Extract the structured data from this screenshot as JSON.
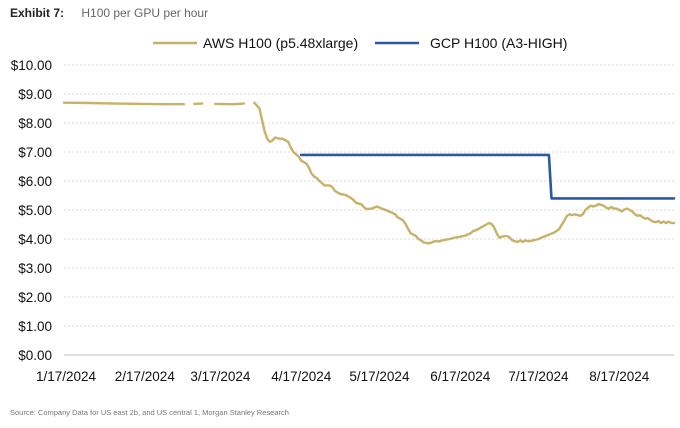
{
  "header": {
    "exhibit": "Exhibit 7:",
    "title": "H100 per GPU per hour"
  },
  "source": "Source: Company Data for US east 2b, and US central 1, Morgan Stanley Research",
  "chart_data": {
    "type": "line",
    "title": "H100 per GPU per hour",
    "xlabel": "",
    "ylabel": "",
    "ylim": [
      0,
      10
    ],
    "y_ticks": [
      0,
      1,
      2,
      3,
      4,
      5,
      6,
      7,
      8,
      9,
      10
    ],
    "y_tick_labels": [
      "$0.00",
      "$1.00",
      "$2.00",
      "$3.00",
      "$4.00",
      "$5.00",
      "$6.00",
      "$7.00",
      "$8.00",
      "$9.00",
      "$10.00"
    ],
    "x_tick_labels": [
      "1/17/2024",
      "2/17/2024",
      "3/17/2024",
      "4/17/2024",
      "5/17/2024",
      "6/17/2024",
      "7/17/2024",
      "8/17/2024"
    ],
    "grid": true,
    "legend_position": "top",
    "series": [
      {
        "name": "AWS H100 (p5.48xlarge)",
        "color": "#c8b168",
        "segments": [
          [
            [
              0,
              8.7
            ],
            [
              10,
              8.69
            ],
            [
              20,
              8.67
            ],
            [
              30,
              8.66
            ],
            [
              40,
              8.65
            ],
            [
              46,
              8.65
            ]
          ],
          [
            [
              50,
              8.66
            ],
            [
              53,
              8.67
            ]
          ],
          [
            [
              58,
              8.66
            ],
            [
              65,
              8.65
            ],
            [
              69,
              8.67
            ]
          ],
          [
            [
              73,
              8.7
            ],
            [
              74,
              8.6
            ],
            [
              75,
              8.5
            ],
            [
              76,
              8.1
            ],
            [
              77,
              7.7
            ],
            [
              78,
              7.45
            ],
            [
              79,
              7.35
            ],
            [
              80,
              7.4
            ],
            [
              81,
              7.5
            ],
            [
              82,
              7.47
            ],
            [
              84,
              7.45
            ],
            [
              86,
              7.35
            ],
            [
              87,
              7.15
            ],
            [
              88,
              7.0
            ],
            [
              90,
              6.85
            ],
            [
              91,
              6.7
            ],
            [
              93,
              6.6
            ],
            [
              94,
              6.45
            ],
            [
              95,
              6.25
            ],
            [
              96,
              6.15
            ],
            [
              97,
              6.1
            ],
            [
              98,
              6.0
            ],
            [
              99,
              5.92
            ],
            [
              100,
              5.85
            ],
            [
              102,
              5.85
            ],
            [
              103,
              5.78
            ],
            [
              104,
              5.65
            ],
            [
              106,
              5.55
            ],
            [
              108,
              5.52
            ],
            [
              110,
              5.42
            ],
            [
              111,
              5.35
            ],
            [
              112,
              5.25
            ],
            [
              114,
              5.2
            ],
            [
              115,
              5.1
            ],
            [
              116,
              5.03
            ],
            [
              118,
              5.05
            ],
            [
              120,
              5.12
            ],
            [
              122,
              5.05
            ],
            [
              124,
              4.98
            ],
            [
              126,
              4.9
            ],
            [
              127,
              4.85
            ],
            [
              128,
              4.75
            ],
            [
              130,
              4.65
            ],
            [
              131,
              4.52
            ],
            [
              132,
              4.35
            ],
            [
              133,
              4.2
            ],
            [
              135,
              4.1
            ],
            [
              136,
              4.0
            ],
            [
              137,
              3.95
            ],
            [
              138,
              3.88
            ],
            [
              140,
              3.85
            ],
            [
              141,
              3.88
            ],
            [
              142,
              3.92
            ],
            [
              144,
              3.92
            ],
            [
              146,
              3.97
            ],
            [
              148,
              4.0
            ],
            [
              150,
              4.05
            ],
            [
              152,
              4.08
            ],
            [
              154,
              4.12
            ],
            [
              156,
              4.2
            ],
            [
              157,
              4.28
            ],
            [
              158,
              4.3
            ],
            [
              160,
              4.4
            ],
            [
              162,
              4.5
            ],
            [
              163,
              4.55
            ],
            [
              164,
              4.52
            ],
            [
              165,
              4.4
            ],
            [
              166,
              4.2
            ],
            [
              167,
              4.05
            ],
            [
              168,
              4.08
            ],
            [
              169,
              4.1
            ],
            [
              170,
              4.1
            ],
            [
              171,
              4.05
            ],
            [
              172,
              3.95
            ],
            [
              173,
              3.92
            ],
            [
              174,
              3.9
            ],
            [
              175,
              3.95
            ],
            [
              176,
              3.9
            ],
            [
              177,
              3.95
            ],
            [
              178,
              3.92
            ],
            [
              180,
              3.95
            ],
            [
              182,
              4.0
            ],
            [
              184,
              4.08
            ],
            [
              186,
              4.15
            ],
            [
              188,
              4.22
            ],
            [
              189,
              4.28
            ],
            [
              190,
              4.35
            ],
            [
              191,
              4.5
            ],
            [
              192,
              4.65
            ],
            [
              193,
              4.8
            ],
            [
              194,
              4.85
            ],
            [
              195,
              4.82
            ],
            [
              196,
              4.85
            ],
            [
              198,
              4.8
            ],
            [
              199,
              4.85
            ],
            [
              200,
              5.0
            ],
            [
              201,
              5.08
            ],
            [
              202,
              5.15
            ],
            [
              203,
              5.12
            ],
            [
              204,
              5.15
            ],
            [
              205,
              5.2
            ],
            [
              206,
              5.18
            ],
            [
              207,
              5.15
            ],
            [
              208,
              5.08
            ],
            [
              209,
              5.05
            ],
            [
              210,
              5.1
            ],
            [
              211,
              5.05
            ],
            [
              212,
              5.05
            ],
            [
              213,
              5.0
            ],
            [
              214,
              4.95
            ],
            [
              215,
              5.02
            ],
            [
              216,
              5.05
            ],
            [
              217,
              5.0
            ],
            [
              218,
              4.95
            ],
            [
              219,
              4.85
            ],
            [
              220,
              4.8
            ],
            [
              221,
              4.82
            ],
            [
              222,
              4.75
            ],
            [
              223,
              4.7
            ],
            [
              224,
              4.72
            ],
            [
              225,
              4.65
            ],
            [
              226,
              4.6
            ],
            [
              227,
              4.58
            ],
            [
              228,
              4.62
            ],
            [
              229,
              4.55
            ],
            [
              230,
              4.6
            ],
            [
              231,
              4.55
            ],
            [
              232,
              4.6
            ],
            [
              233,
              4.55
            ],
            [
              234,
              4.55
            ]
          ]
        ]
      },
      {
        "name": "GCP H100 (A3-HIGH)",
        "color": "#2a58a4",
        "segments": [
          [
            [
              91,
              6.9
            ],
            [
              186,
              6.9
            ],
            [
              187,
              5.4
            ],
            [
              234,
              5.4
            ]
          ]
        ]
      }
    ]
  }
}
